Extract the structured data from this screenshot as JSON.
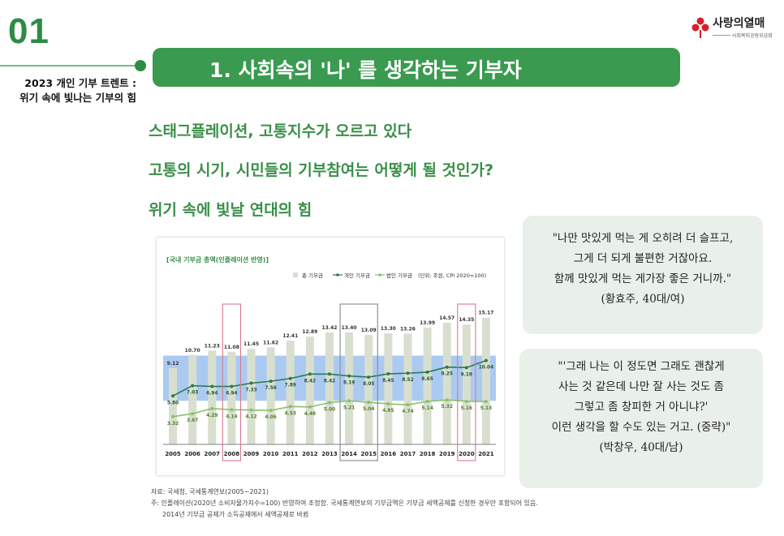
{
  "slide": {
    "number": "01",
    "subtitle_line1": "2023 개인 기부 트렌트 :",
    "subtitle_line2": "위기 속에 빛나는 기부의 힘",
    "title": "1. 사회속의 '나' 를 생각하는 기부자"
  },
  "logo": {
    "name": "사랑의열매",
    "sub": "사회복지공동모금회"
  },
  "headlines": [
    "스태그플레이션, 고통지수가 오르고 있다",
    "고통의 시기, 시민들의 기부참여는 어떻게 될 것인가?",
    "위기 속에 빛날 연대의 힘"
  ],
  "chart_data": {
    "type": "bar",
    "title": "[국내 기부금 총액(인플레이션 반영)]",
    "unit_note": "(단위: 조원, CPI 2020=100)",
    "legend_position": "top-right",
    "categories": [
      "2005",
      "2006",
      "2007",
      "2008",
      "2009",
      "2010",
      "2011",
      "2012",
      "2013",
      "2014",
      "2015",
      "2016",
      "2017",
      "2018",
      "2019",
      "2020",
      "2021"
    ],
    "highlight_years": [
      "2008",
      "2014",
      "2015",
      "2020"
    ],
    "series": [
      {
        "name": "총 기부금",
        "kind": "bar",
        "color": "#d9dfcf",
        "values": [
          9.12,
          10.7,
          11.23,
          11.08,
          11.45,
          11.62,
          12.41,
          12.89,
          13.42,
          13.4,
          13.09,
          13.3,
          13.26,
          13.99,
          14.57,
          14.35,
          15.17
        ],
        "labels": [
          "9.12",
          "10.70",
          "11.23",
          "11.08",
          "11.45",
          "11.62",
          "12.41",
          "12.89",
          "13.42",
          "13.40",
          "13.09",
          "13.30",
          "13.26",
          "13.99",
          "14.57",
          "14.35",
          "15.17"
        ]
      },
      {
        "name": "개인 기부금",
        "kind": "line",
        "color": "#2e7a4e",
        "values": [
          5.8,
          7.03,
          6.94,
          6.94,
          7.33,
          7.56,
          7.89,
          8.42,
          8.42,
          8.19,
          8.05,
          8.45,
          8.52,
          8.65,
          9.25,
          9.19,
          10.04
        ],
        "labels": [
          "5.80",
          "7.03",
          "6.94",
          "6.94",
          "7.33",
          "7.56",
          "7.89",
          "8.42",
          "8.42",
          "8.19",
          "8.05",
          "8.45",
          "8.52",
          "8.65",
          "9.25",
          "9.19",
          "10.04"
        ]
      },
      {
        "name": "법인 기부금",
        "kind": "line",
        "color": "#8cc06a",
        "values": [
          3.32,
          3.67,
          4.29,
          4.14,
          4.12,
          4.06,
          4.53,
          4.48,
          5.0,
          5.21,
          5.04,
          4.85,
          4.74,
          5.14,
          5.32,
          5.16,
          5.13
        ],
        "labels": [
          "3.32",
          "3.67",
          "4.29",
          "4.14",
          "4.12",
          "4.06",
          "4.53",
          "4.48",
          "5.00",
          "5.21",
          "5.04",
          "4.85",
          "4.74",
          "5.14",
          "5.32",
          "5.16",
          "5.13"
        ]
      }
    ],
    "ylim": [
      0,
      16
    ],
    "band_color": "#8fb8ee",
    "highlight_colors": {
      "2008": "#d97a8a",
      "2014": "#888888",
      "2015": "#888888",
      "2020": "#d97a8a"
    }
  },
  "source": {
    "line1": "자료: 국세청, 국세통계연보(2005~2021)",
    "line2": "주: 인플레이션(2020년 소비자물가지수=100) 반영하여 조정함. 국세통계연보의 기부금액은 기부금 세액공제를 신청한 경우만 포함되어 있음.",
    "line3": "2014년 기부금 공제가 소득공제에서 세액공제로 바뀜"
  },
  "quotes": [
    {
      "lines": [
        "\"나만 맛있게 먹는 게 오히려 더 슬프고,",
        "그게 더 되게 불편한 거잖아요.",
        "함께 맛있게 먹는 게가장 좋은 거니까.\"",
        "(황효주, 40대/여)"
      ]
    },
    {
      "lines": [
        "\"'그래 나는 이 정도면 그래도 괜찮게",
        "사는 것 같은데 나만 잘 사는 것도 좀",
        "그렇고 좀 창피한 거 아니냐?'",
        "이런 생각을 할 수도 있는 거고. (중략)\"",
        "(박창우, 40대/남)"
      ]
    }
  ]
}
